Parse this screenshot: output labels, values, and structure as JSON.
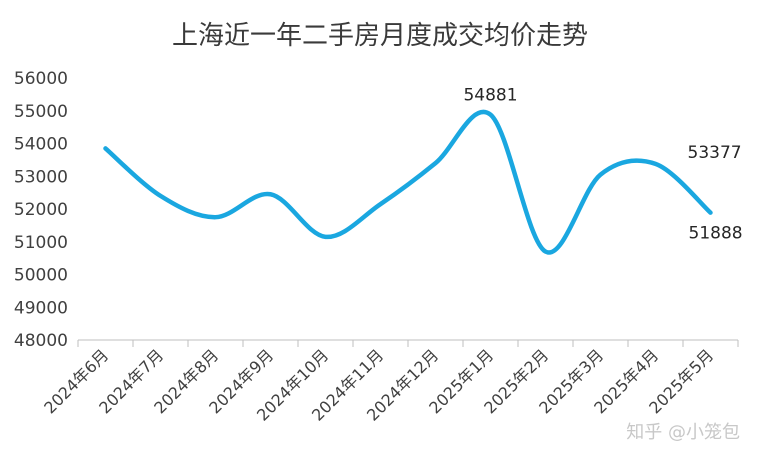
{
  "chart_data": {
    "type": "line",
    "title": "上海近一年二手房月度成交均价走势",
    "categories": [
      "2024年6月",
      "2024年7月",
      "2024年8月",
      "2024年9月",
      "2024年10月",
      "2024年11月",
      "2024年12月",
      "2025年1月",
      "2025年2月",
      "2025年3月",
      "2025年4月",
      "2025年5月"
    ],
    "series": [
      {
        "values": [
          53850,
          52400,
          51750,
          52450,
          51150,
          52150,
          53400,
          54881,
          50700,
          53050,
          53377,
          51888
        ],
        "color": "#1aa7e0"
      }
    ],
    "ylim": [
      48000,
      56000
    ],
    "yticks": [
      48000,
      49000,
      50000,
      51000,
      52000,
      53000,
      54000,
      55000,
      56000
    ],
    "data_labels": [
      {
        "index": 7,
        "text": "54881"
      },
      {
        "index": 10,
        "text": "53377"
      },
      {
        "index": 11,
        "text": "51888"
      }
    ],
    "grid": false,
    "legend": "none"
  },
  "watermark": "知乎 @小笼包",
  "colors": {
    "line": "#1aa7e0",
    "axis": "#bfbfbf",
    "text": "#404040"
  }
}
